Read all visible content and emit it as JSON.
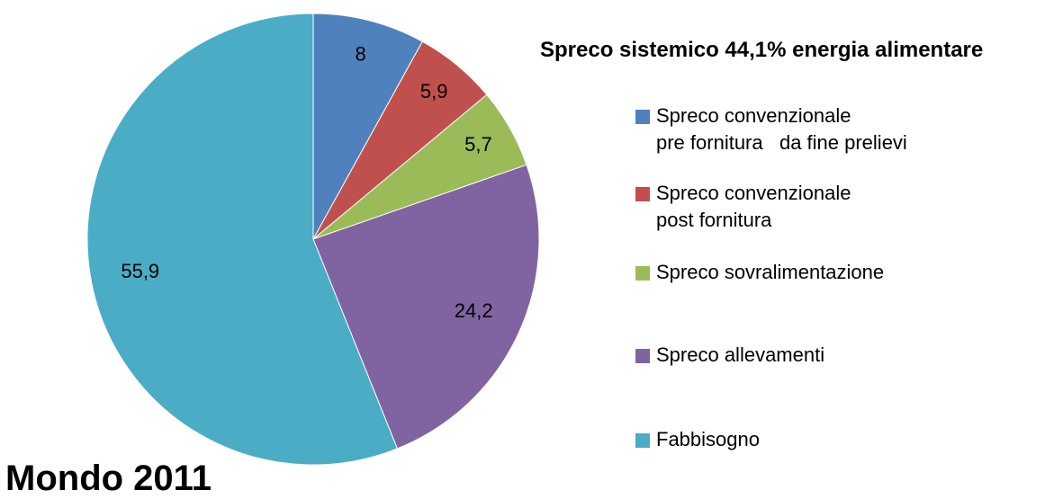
{
  "chart_data": {
    "type": "pie",
    "title": "Spreco sistemico 44,1% energia alimentare",
    "annotation": "Mondo 2011",
    "categories": [
      "Spreco convenzionale\npre fornitura   da fine prelievi",
      "Spreco convenzionale\npost fornitura",
      "Spreco sovralimentazione",
      "Spreco allevamenti",
      "Fabbisogno"
    ],
    "values": [
      8,
      5.9,
      5.7,
      24.2,
      55.9
    ],
    "value_labels": [
      "8",
      "5,9",
      "5,7",
      "24,2",
      "55,9"
    ],
    "colors": [
      "#4f81bd",
      "#c0504d",
      "#9bbb59",
      "#8064a2",
      "#4bacc6"
    ],
    "legend": "right"
  }
}
